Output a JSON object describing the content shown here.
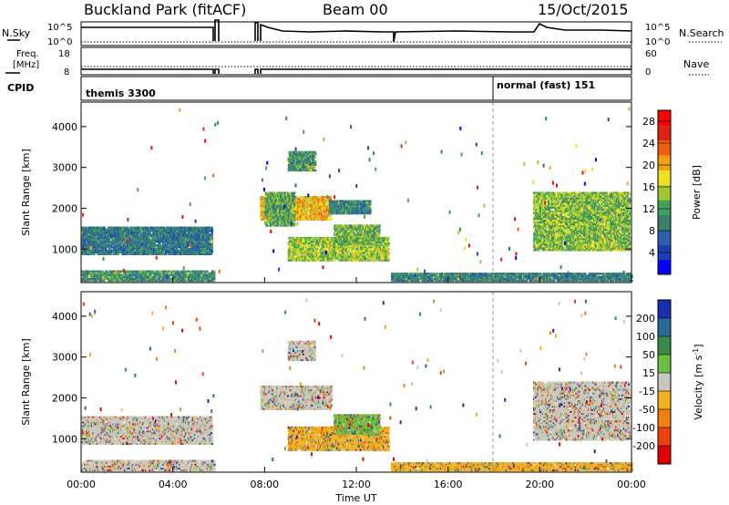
{
  "header": {
    "station": "Buckland Park (fitACF)",
    "beam": "Beam 00",
    "date": "15/Oct/2015"
  },
  "param_panels": {
    "nsky": {
      "label": "N.Sky",
      "top_label": "10^5",
      "bottom_label": "10^0"
    },
    "nsearch": {
      "label": "N.Search",
      "top_label": "10^5",
      "bottom_label": "10^0"
    },
    "freq": {
      "label_line1": "Freq.",
      "label_line2": "[MHz]",
      "top_value": "18",
      "bottom_value": "8"
    },
    "nave": {
      "label": "Nave",
      "top_value": "60",
      "bottom_value": "0"
    },
    "cpid": {
      "label": "CPID",
      "modes": [
        "themis 3300",
        "normal (fast) 151"
      ]
    }
  },
  "chart_data": [
    {
      "type": "heatmap",
      "name": "power",
      "ylabel": "Slant Range [km]",
      "yticks": [
        1000,
        2000,
        3000,
        4000
      ],
      "ylim": [
        180,
        4600
      ],
      "xlim": [
        0,
        24
      ],
      "colorbar": {
        "label": "Power [dB]",
        "ticks": [
          4,
          8,
          12,
          16,
          20,
          24,
          28
        ],
        "range": [
          0,
          30
        ],
        "colors": [
          "#0000ff",
          "#1c3fb8",
          "#2d62a8",
          "#3a7f6c",
          "#3fa35a",
          "#a0c830",
          "#f0e020",
          "#f0a010",
          "#f06010",
          "#e02010",
          "#ff0000"
        ]
      },
      "echo_regions": [
        {
          "t0": 0.0,
          "t1": 5.7,
          "r0": 850,
          "r1": 1550,
          "level": 8
        },
        {
          "t0": 0.0,
          "t1": 5.8,
          "r0": 200,
          "r1": 480,
          "level": 10
        },
        {
          "t0": 7.8,
          "t1": 10.9,
          "r0": 1700,
          "r1": 2300,
          "level": 20
        },
        {
          "t0": 8.0,
          "t1": 9.3,
          "r0": 1550,
          "r1": 2400,
          "level": 12
        },
        {
          "t0": 9.0,
          "t1": 10.2,
          "r0": 2900,
          "r1": 3400,
          "level": 11
        },
        {
          "t0": 9.0,
          "t1": 13.4,
          "r0": 700,
          "r1": 1300,
          "level": 15
        },
        {
          "t0": 11.0,
          "t1": 13.0,
          "r0": 1100,
          "r1": 1600,
          "level": 13
        },
        {
          "t0": 10.8,
          "t1": 12.6,
          "r0": 1850,
          "r1": 2200,
          "level": 9
        },
        {
          "t0": 13.5,
          "t1": 24.0,
          "r0": 200,
          "r1": 420,
          "level": 9
        },
        {
          "t0": 19.7,
          "t1": 23.9,
          "r0": 950,
          "r1": 2400,
          "level": 14
        }
      ]
    },
    {
      "type": "heatmap",
      "name": "velocity",
      "ylabel": "Slant Range [km]",
      "yticks": [
        1000,
        2000,
        3000,
        4000
      ],
      "ylim": [
        180,
        4600
      ],
      "xlim": [
        0,
        24
      ],
      "xticks": [
        "00:00",
        "04:00",
        "08:00",
        "12:00",
        "16:00",
        "20:00",
        "00:00"
      ],
      "xlabel": "Time UT",
      "colorbar": {
        "label": "Velocity [m s^-1]",
        "ticks": [
          200,
          100,
          50,
          15,
          -15,
          -50,
          -100,
          -200
        ],
        "colors": [
          "#1a2fb0",
          "#2a6a9a",
          "#3a8a4a",
          "#6ac040",
          "#c8c8be",
          "#f0b020",
          "#f08010",
          "#f04010",
          "#e00000"
        ]
      },
      "echo_regions": [
        {
          "t0": 0.0,
          "t1": 5.7,
          "r0": 850,
          "r1": 1550,
          "level": 4
        },
        {
          "t0": 0.0,
          "t1": 5.8,
          "r0": 200,
          "r1": 480,
          "level": 4
        },
        {
          "t0": 7.8,
          "t1": 10.9,
          "r0": 1700,
          "r1": 2300,
          "level": 4
        },
        {
          "t0": 9.0,
          "t1": 10.2,
          "r0": 2900,
          "r1": 3400,
          "level": 4
        },
        {
          "t0": 9.0,
          "t1": 13.4,
          "r0": 700,
          "r1": 1300,
          "level": 5
        },
        {
          "t0": 11.0,
          "t1": 13.0,
          "r0": 1100,
          "r1": 1600,
          "level": 3
        },
        {
          "t0": 13.5,
          "t1": 24.0,
          "r0": 200,
          "r1": 420,
          "level": 5
        },
        {
          "t0": 19.7,
          "t1": 23.9,
          "r0": 950,
          "r1": 2400,
          "level": 4
        }
      ]
    }
  ]
}
